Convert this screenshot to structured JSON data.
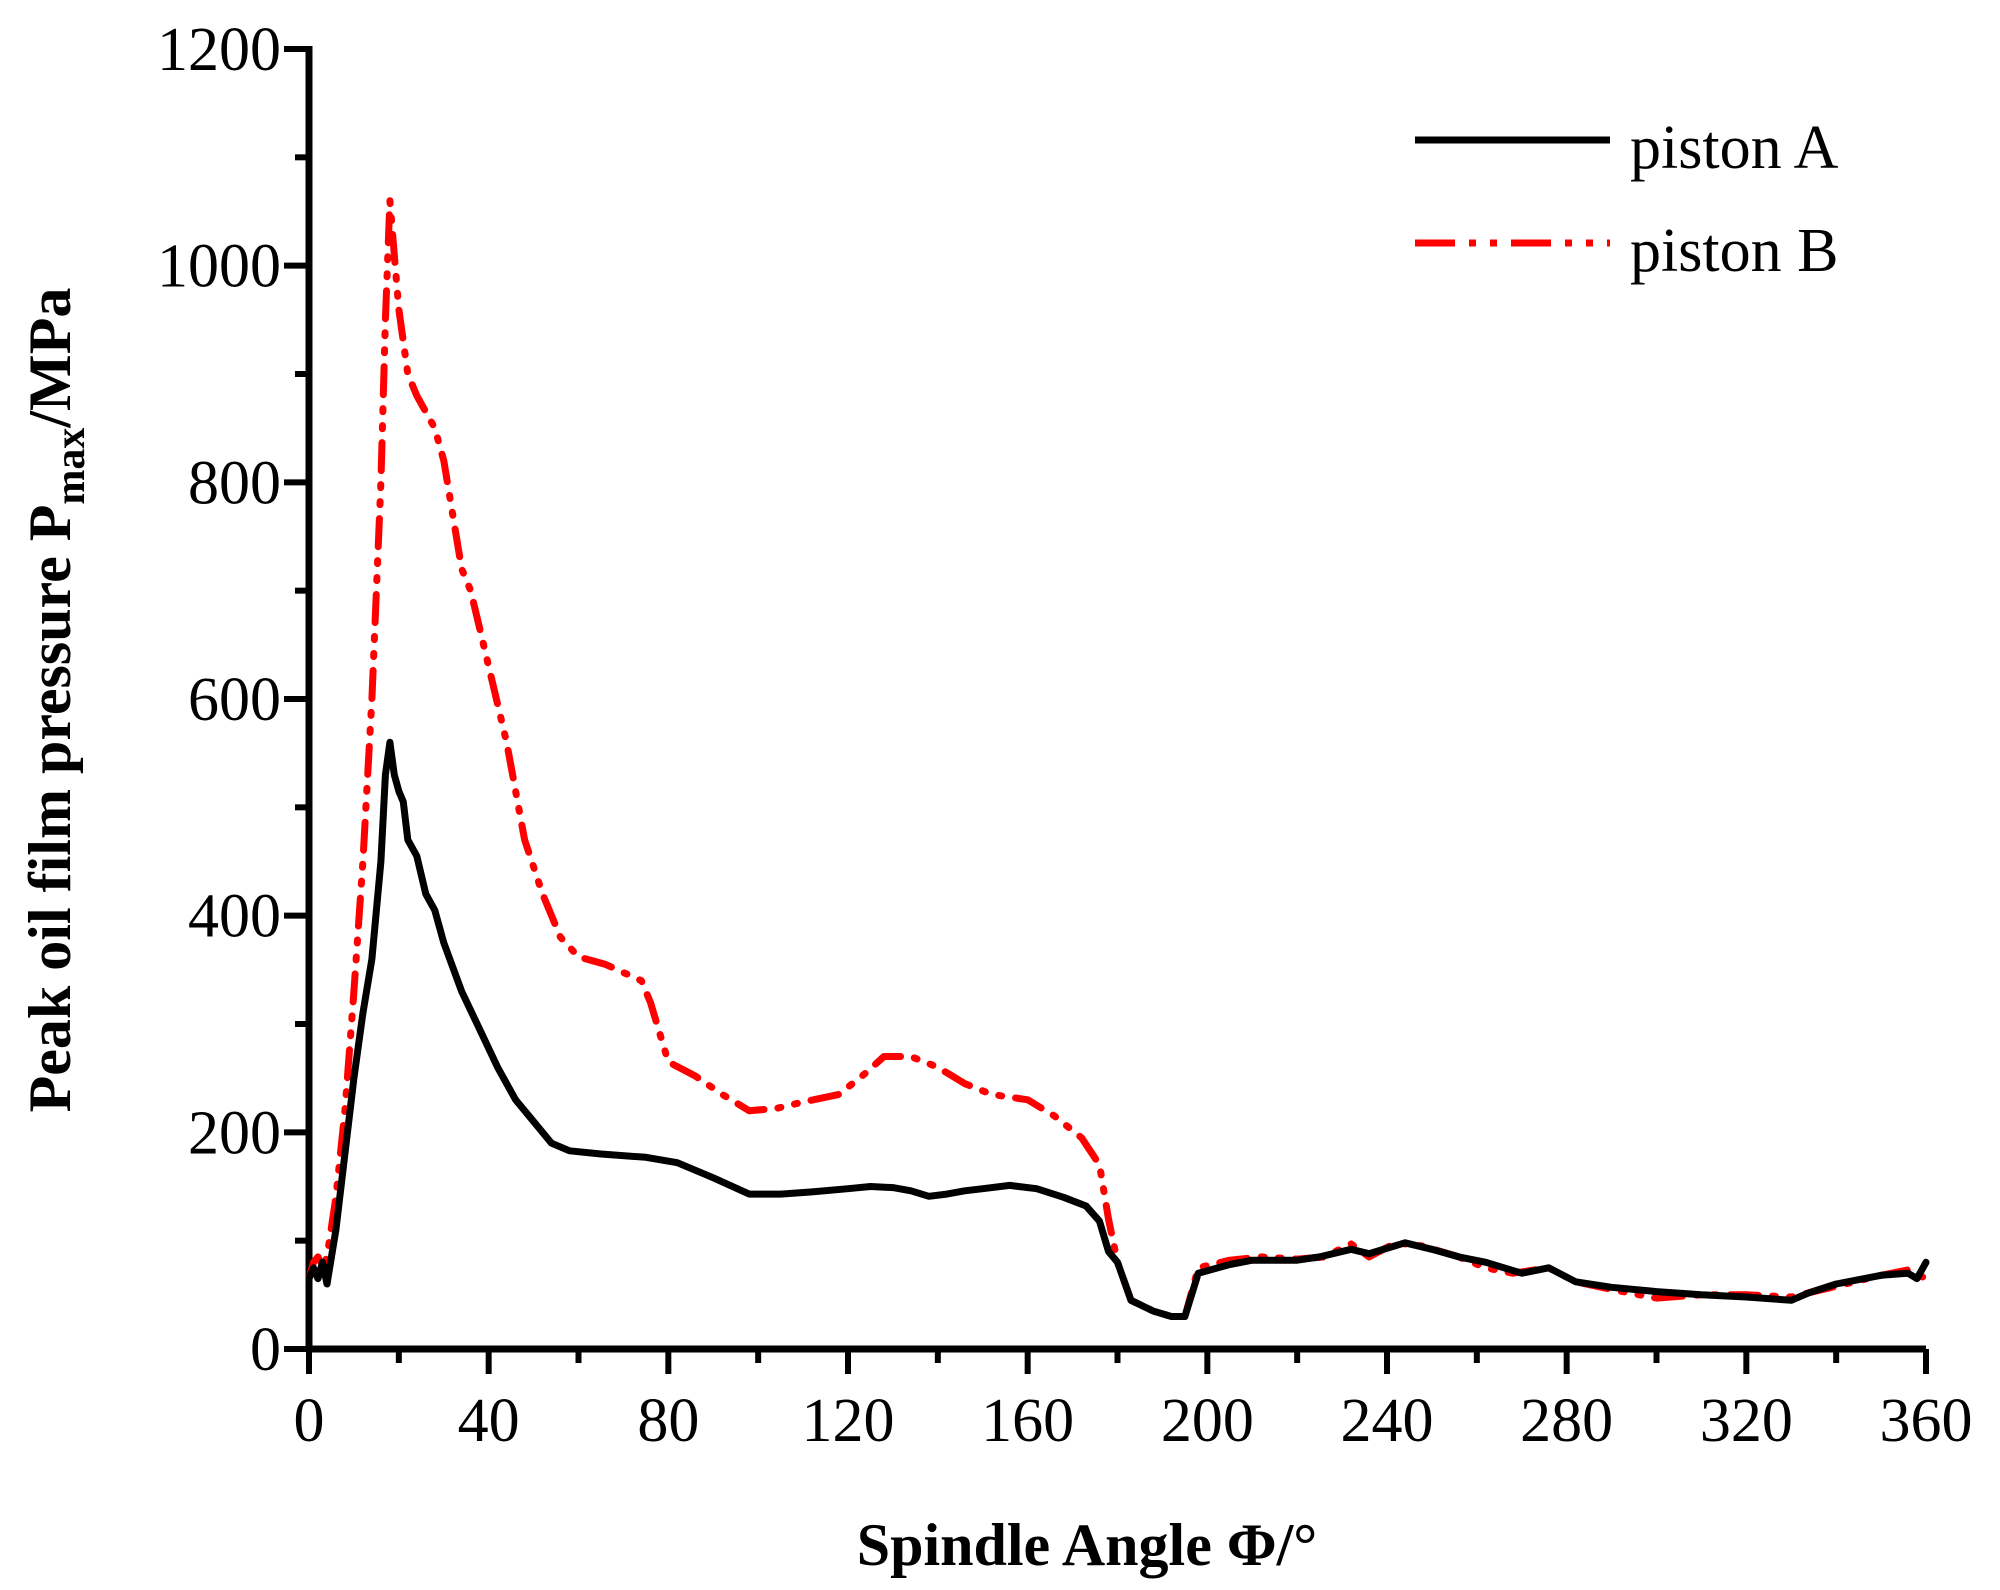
{
  "chart_data": {
    "type": "line",
    "xlabel": "Spindle Angle Φ/°",
    "ylabel_main": "Peak oil film pressure P",
    "ylabel_sub": "max",
    "ylabel_unit": "/MPa",
    "xlim": [
      0,
      360
    ],
    "ylim": [
      0,
      1200
    ],
    "xticks": [
      "0",
      "40",
      "80",
      "120",
      "160",
      "200",
      "240",
      "280",
      "320",
      "360"
    ],
    "yticks": [
      "0",
      "200",
      "400",
      "600",
      "800",
      "1000",
      "1200"
    ],
    "grid": false,
    "legend_position": "top-right",
    "series": [
      {
        "name": "piston A",
        "color": "#000000",
        "style": "solid",
        "x": [
          0,
          1,
          2,
          3,
          4,
          6,
          8,
          10,
          12,
          14,
          16,
          17,
          18,
          19,
          20,
          21,
          22,
          24,
          26,
          28,
          30,
          34,
          38,
          42,
          46,
          50,
          54,
          58,
          65,
          75,
          82,
          90,
          98,
          105,
          112,
          120,
          125,
          130,
          134,
          138,
          142,
          146,
          150,
          156,
          162,
          168,
          173,
          176,
          178,
          180,
          183,
          188,
          192,
          195,
          198,
          205,
          210,
          220,
          225,
          232,
          236,
          244,
          250,
          256,
          262,
          270,
          276,
          282,
          290,
          300,
          310,
          320,
          330,
          334,
          340,
          350,
          356,
          358,
          360
        ],
        "y": [
          65,
          75,
          65,
          80,
          60,
          110,
          180,
          250,
          310,
          360,
          450,
          530,
          560,
          530,
          515,
          505,
          470,
          455,
          420,
          405,
          375,
          330,
          295,
          260,
          230,
          210,
          190,
          183,
          180,
          177,
          172,
          158,
          143,
          143,
          145,
          148,
          150,
          149,
          146,
          141,
          143,
          146,
          148,
          151,
          148,
          140,
          132,
          118,
          90,
          80,
          45,
          35,
          30,
          30,
          70,
          78,
          82,
          82,
          85,
          92,
          88,
          98,
          92,
          85,
          80,
          70,
          75,
          62,
          57,
          53,
          50,
          48,
          45,
          52,
          60,
          68,
          70,
          65,
          80
        ]
      },
      {
        "name": "piston B",
        "color": "#ff0000",
        "style": "dash-dot-dot",
        "x": [
          0,
          1,
          2,
          3,
          4,
          6,
          8,
          10,
          12,
          14,
          16,
          17,
          18,
          19,
          20,
          22,
          24,
          28,
          30,
          34,
          36,
          40,
          44,
          48,
          52,
          56,
          60,
          66,
          74,
          76,
          80,
          86,
          92,
          98,
          104,
          110,
          118,
          124,
          128,
          134,
          140,
          146,
          152,
          160,
          166,
          172,
          176,
          178,
          180,
          183,
          188,
          192,
          195,
          198,
          205,
          212,
          220,
          226,
          232,
          236,
          242,
          248,
          256,
          262,
          268,
          276,
          282,
          290,
          300,
          310,
          320,
          330,
          340,
          350,
          356,
          360
        ],
        "y": [
          65,
          80,
          85,
          75,
          85,
          140,
          220,
          330,
          450,
          600,
          800,
          950,
          1060,
          1010,
          960,
          900,
          880,
          850,
          820,
          720,
          700,
          630,
          560,
          470,
          420,
          380,
          362,
          355,
          340,
          320,
          265,
          252,
          235,
          220,
          222,
          228,
          235,
          255,
          270,
          270,
          260,
          245,
          235,
          230,
          215,
          195,
          170,
          120,
          80,
          45,
          35,
          30,
          30,
          75,
          82,
          85,
          83,
          85,
          97,
          85,
          98,
          95,
          85,
          75,
          70,
          75,
          62,
          55,
          47,
          50,
          50,
          48,
          58,
          68,
          73,
          65
        ]
      }
    ]
  }
}
